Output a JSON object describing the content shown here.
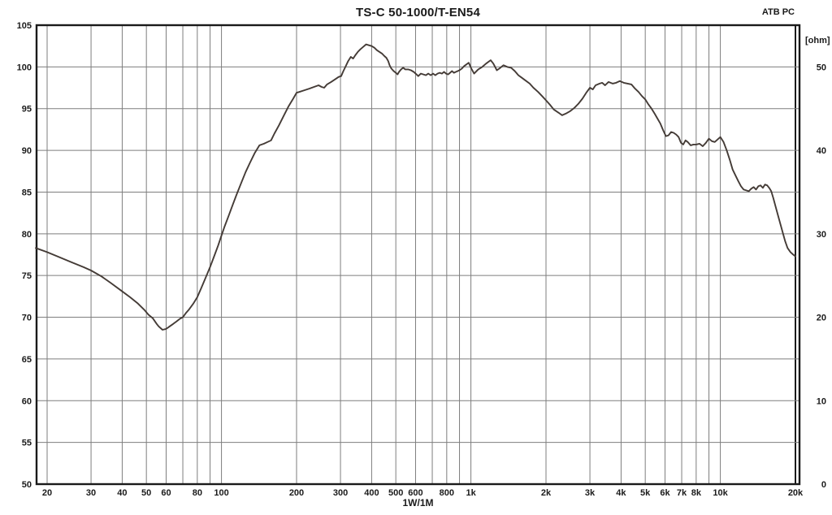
{
  "colors": {
    "background": "#ffffff",
    "grid": "#7e7e7e",
    "border": "#1a1a1a",
    "curve": "#443b36",
    "text": "#1a1a1a"
  },
  "chart_data": {
    "type": "line",
    "title": "TS-C 50-1000/T-EN54",
    "watermark": "ATB PC",
    "grid": "on",
    "x_axis": {
      "scale": "log",
      "unit": "Hz",
      "caption": "1W/1M",
      "range_hz": [
        18,
        20500
      ],
      "gridlines_hz": [
        20,
        30,
        40,
        50,
        60,
        70,
        80,
        90,
        100,
        200,
        300,
        400,
        500,
        600,
        700,
        800,
        900,
        1000,
        2000,
        3000,
        4000,
        5000,
        6000,
        7000,
        8000,
        9000,
        10000,
        20000
      ],
      "ticks": [
        {
          "v": 20,
          "label": "20"
        },
        {
          "v": 30,
          "label": "30"
        },
        {
          "v": 40,
          "label": "40"
        },
        {
          "v": 50,
          "label": "50"
        },
        {
          "v": 60,
          "label": "60"
        },
        {
          "v": 80,
          "label": "80"
        },
        {
          "v": 100,
          "label": "100"
        },
        {
          "v": 200,
          "label": "200"
        },
        {
          "v": 300,
          "label": "300"
        },
        {
          "v": 400,
          "label": "400"
        },
        {
          "v": 500,
          "label": "500"
        },
        {
          "v": 600,
          "label": "600"
        },
        {
          "v": 800,
          "label": "800"
        },
        {
          "v": 1000,
          "label": "1k"
        },
        {
          "v": 2000,
          "label": "2k"
        },
        {
          "v": 3000,
          "label": "3k"
        },
        {
          "v": 4000,
          "label": "4k"
        },
        {
          "v": 5000,
          "label": "5k"
        },
        {
          "v": 6000,
          "label": "6k"
        },
        {
          "v": 7000,
          "label": "7k"
        },
        {
          "v": 8000,
          "label": "8k"
        },
        {
          "v": 10000,
          "label": "10k"
        },
        {
          "v": 20000,
          "label": "20k"
        }
      ]
    },
    "y_left_axis": {
      "min": 50,
      "max": 105,
      "tick_step": 5,
      "ticks": [
        105,
        100,
        95,
        90,
        85,
        80,
        75,
        70,
        65,
        60,
        55,
        50
      ]
    },
    "y_right_axis": {
      "unit_label": "[ohm]",
      "min": 0,
      "max": 55,
      "ticks": [
        {
          "v": 50,
          "label": "50"
        },
        {
          "v": 40,
          "label": "40"
        },
        {
          "v": 30,
          "label": "30"
        },
        {
          "v": 20,
          "label": "20"
        },
        {
          "v": 10,
          "label": "10"
        },
        {
          "v": 0,
          "label": "0"
        }
      ]
    },
    "series": [
      {
        "name": "spl-frequency-response",
        "points_hz_db": [
          [
            18,
            78.3
          ],
          [
            20,
            77.8
          ],
          [
            22,
            77.3
          ],
          [
            25,
            76.6
          ],
          [
            28,
            76.0
          ],
          [
            30,
            75.6
          ],
          [
            33,
            74.9
          ],
          [
            36,
            74.1
          ],
          [
            40,
            73.1
          ],
          [
            43,
            72.4
          ],
          [
            46,
            71.7
          ],
          [
            49,
            70.9
          ],
          [
            51,
            70.3
          ],
          [
            53,
            69.9
          ],
          [
            55,
            69.2
          ],
          [
            56,
            68.9
          ],
          [
            58,
            68.5
          ],
          [
            60,
            68.6
          ],
          [
            62,
            68.9
          ],
          [
            64,
            69.2
          ],
          [
            66,
            69.5
          ],
          [
            68,
            69.8
          ],
          [
            70,
            70.0
          ],
          [
            72,
            70.5
          ],
          [
            74,
            70.9
          ],
          [
            77,
            71.6
          ],
          [
            80,
            72.4
          ],
          [
            83,
            73.5
          ],
          [
            86,
            74.6
          ],
          [
            90,
            76.0
          ],
          [
            94,
            77.5
          ],
          [
            97,
            78.6
          ],
          [
            100,
            79.8
          ],
          [
            103,
            80.9
          ],
          [
            107,
            82.2
          ],
          [
            111,
            83.5
          ],
          [
            115,
            84.7
          ],
          [
            120,
            86.1
          ],
          [
            125,
            87.4
          ],
          [
            130,
            88.5
          ],
          [
            136,
            89.7
          ],
          [
            142,
            90.6
          ],
          [
            148,
            90.8
          ],
          [
            153,
            91.0
          ],
          [
            158,
            91.2
          ],
          [
            163,
            92.0
          ],
          [
            170,
            93.0
          ],
          [
            178,
            94.2
          ],
          [
            186,
            95.3
          ],
          [
            194,
            96.2
          ],
          [
            200,
            96.9
          ],
          [
            205,
            97.0
          ],
          [
            215,
            97.2
          ],
          [
            225,
            97.4
          ],
          [
            235,
            97.6
          ],
          [
            245,
            97.8
          ],
          [
            252,
            97.6
          ],
          [
            258,
            97.5
          ],
          [
            265,
            97.9
          ],
          [
            275,
            98.2
          ],
          [
            285,
            98.5
          ],
          [
            295,
            98.8
          ],
          [
            302,
            98.9
          ],
          [
            308,
            99.5
          ],
          [
            315,
            100.1
          ],
          [
            322,
            100.7
          ],
          [
            330,
            101.2
          ],
          [
            337,
            101.0
          ],
          [
            344,
            101.4
          ],
          [
            352,
            101.8
          ],
          [
            360,
            102.1
          ],
          [
            370,
            102.4
          ],
          [
            380,
            102.7
          ],
          [
            390,
            102.6
          ],
          [
            400,
            102.5
          ],
          [
            410,
            102.3
          ],
          [
            420,
            102.0
          ],
          [
            430,
            101.8
          ],
          [
            440,
            101.6
          ],
          [
            450,
            101.3
          ],
          [
            458,
            101.1
          ],
          [
            466,
            100.7
          ],
          [
            472,
            100.2
          ],
          [
            480,
            99.8
          ],
          [
            490,
            99.5
          ],
          [
            500,
            99.3
          ],
          [
            508,
            99.1
          ],
          [
            515,
            99.4
          ],
          [
            525,
            99.7
          ],
          [
            535,
            99.9
          ],
          [
            545,
            99.7
          ],
          [
            560,
            99.7
          ],
          [
            575,
            99.6
          ],
          [
            590,
            99.4
          ],
          [
            605,
            99.1
          ],
          [
            615,
            98.9
          ],
          [
            630,
            99.2
          ],
          [
            645,
            99.1
          ],
          [
            660,
            99.0
          ],
          [
            675,
            99.2
          ],
          [
            690,
            99.0
          ],
          [
            705,
            99.2
          ],
          [
            720,
            99.0
          ],
          [
            735,
            99.2
          ],
          [
            750,
            99.3
          ],
          [
            765,
            99.2
          ],
          [
            780,
            99.4
          ],
          [
            795,
            99.2
          ],
          [
            810,
            99.1
          ],
          [
            825,
            99.3
          ],
          [
            840,
            99.5
          ],
          [
            855,
            99.3
          ],
          [
            870,
            99.4
          ],
          [
            885,
            99.5
          ],
          [
            900,
            99.6
          ],
          [
            920,
            99.8
          ],
          [
            940,
            100.1
          ],
          [
            960,
            100.3
          ],
          [
            980,
            100.5
          ],
          [
            1000,
            99.9
          ],
          [
            1030,
            99.2
          ],
          [
            1070,
            99.7
          ],
          [
            1110,
            100.0
          ],
          [
            1150,
            100.4
          ],
          [
            1200,
            100.8
          ],
          [
            1230,
            100.4
          ],
          [
            1270,
            99.6
          ],
          [
            1300,
            99.8
          ],
          [
            1350,
            100.2
          ],
          [
            1400,
            100.0
          ],
          [
            1450,
            99.9
          ],
          [
            1500,
            99.5
          ],
          [
            1550,
            99.0
          ],
          [
            1600,
            98.7
          ],
          [
            1650,
            98.4
          ],
          [
            1720,
            98.0
          ],
          [
            1780,
            97.5
          ],
          [
            1860,
            97.0
          ],
          [
            1930,
            96.5
          ],
          [
            2000,
            96.0
          ],
          [
            2070,
            95.5
          ],
          [
            2150,
            94.9
          ],
          [
            2250,
            94.5
          ],
          [
            2320,
            94.2
          ],
          [
            2400,
            94.4
          ],
          [
            2500,
            94.7
          ],
          [
            2600,
            95.1
          ],
          [
            2700,
            95.6
          ],
          [
            2800,
            96.2
          ],
          [
            2900,
            96.9
          ],
          [
            3000,
            97.5
          ],
          [
            3080,
            97.3
          ],
          [
            3160,
            97.8
          ],
          [
            3280,
            98.0
          ],
          [
            3360,
            98.1
          ],
          [
            3450,
            97.8
          ],
          [
            3560,
            98.2
          ],
          [
            3700,
            98.0
          ],
          [
            3820,
            98.1
          ],
          [
            3950,
            98.3
          ],
          [
            4100,
            98.1
          ],
          [
            4250,
            98.0
          ],
          [
            4400,
            97.9
          ],
          [
            4550,
            97.4
          ],
          [
            4700,
            97.0
          ],
          [
            4850,
            96.5
          ],
          [
            5000,
            96.1
          ],
          [
            5150,
            95.5
          ],
          [
            5300,
            95.0
          ],
          [
            5450,
            94.4
          ],
          [
            5600,
            93.8
          ],
          [
            5750,
            93.2
          ],
          [
            5900,
            92.4
          ],
          [
            6050,
            91.7
          ],
          [
            6200,
            91.8
          ],
          [
            6350,
            92.2
          ],
          [
            6500,
            92.1
          ],
          [
            6650,
            91.9
          ],
          [
            6800,
            91.6
          ],
          [
            6950,
            90.9
          ],
          [
            7100,
            90.7
          ],
          [
            7250,
            91.2
          ],
          [
            7400,
            91.0
          ],
          [
            7600,
            90.6
          ],
          [
            7800,
            90.7
          ],
          [
            8000,
            90.7
          ],
          [
            8250,
            90.8
          ],
          [
            8500,
            90.5
          ],
          [
            8750,
            90.9
          ],
          [
            9000,
            91.4
          ],
          [
            9250,
            91.1
          ],
          [
            9500,
            91.0
          ],
          [
            9750,
            91.3
          ],
          [
            10000,
            91.6
          ],
          [
            10300,
            91.0
          ],
          [
            10600,
            90.0
          ],
          [
            10900,
            88.9
          ],
          [
            11200,
            87.7
          ],
          [
            11500,
            87.0
          ],
          [
            11800,
            86.3
          ],
          [
            12100,
            85.7
          ],
          [
            12400,
            85.3
          ],
          [
            12700,
            85.2
          ],
          [
            13000,
            85.1
          ],
          [
            13300,
            85.4
          ],
          [
            13600,
            85.6
          ],
          [
            13900,
            85.3
          ],
          [
            14200,
            85.7
          ],
          [
            14500,
            85.8
          ],
          [
            14800,
            85.5
          ],
          [
            15100,
            85.9
          ],
          [
            15400,
            85.8
          ],
          [
            15700,
            85.5
          ],
          [
            16000,
            85.1
          ],
          [
            16300,
            84.3
          ],
          [
            16600,
            83.4
          ],
          [
            17000,
            82.3
          ],
          [
            17400,
            81.2
          ],
          [
            17800,
            80.1
          ],
          [
            18200,
            79.1
          ],
          [
            18600,
            78.3
          ],
          [
            19100,
            77.8
          ],
          [
            19600,
            77.5
          ],
          [
            20000,
            77.3
          ]
        ]
      }
    ]
  }
}
